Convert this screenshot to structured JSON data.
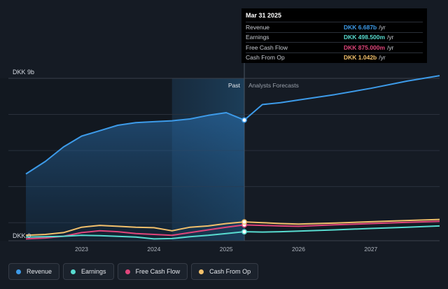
{
  "chart_data": {
    "type": "area",
    "y_axis_labels": {
      "top": "DKK 9b",
      "bottom": "DKK 0"
    },
    "ylim": [
      0,
      9
    ],
    "y_unit": "DKK b",
    "x_ticks": [
      "2023",
      "2024",
      "2025",
      "2026",
      "2027"
    ],
    "xlim": [
      2022.23,
      2027.95
    ],
    "past_label": "Past",
    "forecast_label": "Analysts Forecasts",
    "divider_x": 2025.25,
    "forecast_shade_start": 2024.25,
    "series": [
      {
        "name": "Revenue",
        "color": "#3d9be9",
        "area": true,
        "points": [
          [
            2022.23,
            3.7
          ],
          [
            2022.5,
            4.4
          ],
          [
            2022.75,
            5.2
          ],
          [
            2023.0,
            5.8
          ],
          [
            2023.25,
            6.1
          ],
          [
            2023.5,
            6.4
          ],
          [
            2023.75,
            6.55
          ],
          [
            2024.0,
            6.6
          ],
          [
            2024.25,
            6.65
          ],
          [
            2024.5,
            6.75
          ],
          [
            2024.75,
            6.95
          ],
          [
            2025.0,
            7.1
          ],
          [
            2025.25,
            6.687
          ],
          [
            2025.5,
            7.55
          ],
          [
            2025.75,
            7.65
          ],
          [
            2026.0,
            7.8
          ],
          [
            2026.5,
            8.1
          ],
          [
            2027.0,
            8.45
          ],
          [
            2027.5,
            8.85
          ],
          [
            2027.95,
            9.15
          ]
        ]
      },
      {
        "name": "Earnings",
        "color": "#58dcd0",
        "points": [
          [
            2022.23,
            0.2
          ],
          [
            2022.5,
            0.22
          ],
          [
            2022.75,
            0.25
          ],
          [
            2023.0,
            0.3
          ],
          [
            2023.25,
            0.28
          ],
          [
            2023.5,
            0.24
          ],
          [
            2023.75,
            0.2
          ],
          [
            2024.0,
            0.1
          ],
          [
            2024.25,
            0.12
          ],
          [
            2024.5,
            0.22
          ],
          [
            2024.75,
            0.3
          ],
          [
            2025.0,
            0.4
          ],
          [
            2025.25,
            0.4985
          ],
          [
            2025.5,
            0.48
          ],
          [
            2025.75,
            0.5
          ],
          [
            2026.0,
            0.53
          ],
          [
            2026.5,
            0.6
          ],
          [
            2027.0,
            0.68
          ],
          [
            2027.5,
            0.75
          ],
          [
            2027.95,
            0.82
          ]
        ]
      },
      {
        "name": "Free Cash Flow",
        "color": "#e0457b",
        "points": [
          [
            2022.23,
            0.1
          ],
          [
            2022.5,
            0.15
          ],
          [
            2022.75,
            0.25
          ],
          [
            2023.0,
            0.45
          ],
          [
            2023.25,
            0.55
          ],
          [
            2023.5,
            0.5
          ],
          [
            2023.75,
            0.4
          ],
          [
            2024.0,
            0.35
          ],
          [
            2024.25,
            0.3
          ],
          [
            2024.5,
            0.45
          ],
          [
            2024.75,
            0.6
          ],
          [
            2025.0,
            0.75
          ],
          [
            2025.25,
            0.875
          ],
          [
            2025.5,
            0.85
          ],
          [
            2025.75,
            0.82
          ],
          [
            2026.0,
            0.8
          ],
          [
            2026.5,
            0.88
          ],
          [
            2027.0,
            0.95
          ],
          [
            2027.5,
            1.02
          ],
          [
            2027.95,
            1.08
          ]
        ]
      },
      {
        "name": "Cash From Op",
        "color": "#f2c06b",
        "points": [
          [
            2022.23,
            0.3
          ],
          [
            2022.5,
            0.35
          ],
          [
            2022.75,
            0.45
          ],
          [
            2023.0,
            0.75
          ],
          [
            2023.25,
            0.85
          ],
          [
            2023.5,
            0.8
          ],
          [
            2023.75,
            0.75
          ],
          [
            2024.0,
            0.72
          ],
          [
            2024.25,
            0.55
          ],
          [
            2024.5,
            0.75
          ],
          [
            2024.75,
            0.82
          ],
          [
            2025.0,
            0.95
          ],
          [
            2025.25,
            1.042
          ],
          [
            2025.5,
            1.0
          ],
          [
            2025.75,
            0.95
          ],
          [
            2026.0,
            0.92
          ],
          [
            2026.5,
            0.98
          ],
          [
            2027.0,
            1.05
          ],
          [
            2027.5,
            1.12
          ],
          [
            2027.95,
            1.18
          ]
        ]
      }
    ]
  },
  "tooltip": {
    "date": "Mar 31 2025",
    "rows": [
      {
        "label": "Revenue",
        "value": "DKK 6.687b",
        "unit": "/yr",
        "color": "#3d9be9"
      },
      {
        "label": "Earnings",
        "value": "DKK 498.500m",
        "unit": "/yr",
        "color": "#58dcd0"
      },
      {
        "label": "Free Cash Flow",
        "value": "DKK 875.000m",
        "unit": "/yr",
        "color": "#e0457b"
      },
      {
        "label": "Cash From Op",
        "value": "DKK 1.042b",
        "unit": "/yr",
        "color": "#f2c06b"
      }
    ]
  },
  "legend": [
    {
      "label": "Revenue",
      "color": "#3d9be9"
    },
    {
      "label": "Earnings",
      "color": "#58dcd0"
    },
    {
      "label": "Free Cash Flow",
      "color": "#e0457b"
    },
    {
      "label": "Cash From Op",
      "color": "#f2c06b"
    }
  ]
}
